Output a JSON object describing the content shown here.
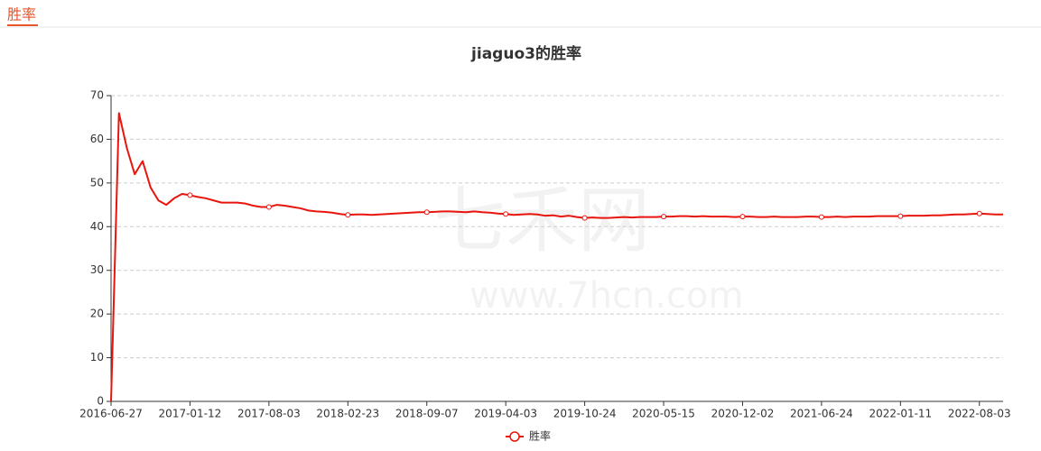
{
  "header": {
    "title": "胜率"
  },
  "watermark": {
    "brand": "七禾网",
    "url": "www.7hcn.com"
  },
  "chart_data": {
    "type": "line",
    "title": "jiaguo3的胜率",
    "categories": [
      "2016-06-27",
      null,
      null,
      null,
      null,
      null,
      null,
      null,
      null,
      null,
      "2017-01-12",
      null,
      null,
      null,
      null,
      null,
      null,
      null,
      null,
      null,
      "2017-08-03",
      null,
      null,
      null,
      null,
      null,
      null,
      null,
      null,
      null,
      "2018-02-23",
      null,
      null,
      null,
      null,
      null,
      null,
      null,
      null,
      null,
      "2018-09-07",
      null,
      null,
      null,
      null,
      null,
      null,
      null,
      null,
      null,
      "2019-04-03",
      null,
      null,
      null,
      null,
      null,
      null,
      null,
      null,
      null,
      "2019-10-24",
      null,
      null,
      null,
      null,
      null,
      null,
      null,
      null,
      null,
      "2020-05-15",
      null,
      null,
      null,
      null,
      null,
      null,
      null,
      null,
      null,
      "2020-12-02",
      null,
      null,
      null,
      null,
      null,
      null,
      null,
      null,
      null,
      "2021-06-24",
      null,
      null,
      null,
      null,
      null,
      null,
      null,
      null,
      null,
      "2022-01-11",
      null,
      null,
      null,
      null,
      null,
      null,
      null,
      null,
      null,
      "2022-08-03",
      null,
      null,
      null
    ],
    "series": [
      {
        "name": "胜率",
        "color": "#e8150e",
        "values": [
          0,
          66,
          58,
          52,
          55,
          49,
          46,
          45,
          46.5,
          47.5,
          47.2,
          46.8,
          46.5,
          46,
          45.5,
          45.5,
          45.5,
          45.3,
          44.8,
          44.5,
          44.5,
          45,
          44.8,
          44.5,
          44.2,
          43.7,
          43.5,
          43.4,
          43.2,
          42.9,
          42.7,
          42.8,
          42.8,
          42.7,
          42.8,
          42.9,
          43,
          43.1,
          43.2,
          43.3,
          43.3,
          43.4,
          43.5,
          43.5,
          43.4,
          43.3,
          43.5,
          43.3,
          43.2,
          43,
          42.9,
          42.7,
          42.8,
          42.9,
          42.8,
          42.5,
          42.6,
          42.3,
          42.5,
          42.2,
          42,
          42.1,
          42,
          42,
          42.1,
          42.2,
          42.1,
          42.2,
          42.2,
          42.2,
          42.3,
          42.3,
          42.4,
          42.4,
          42.3,
          42.4,
          42.3,
          42.3,
          42.3,
          42.2,
          42.3,
          42.3,
          42.2,
          42.2,
          42.3,
          42.2,
          42.2,
          42.2,
          42.3,
          42.3,
          42.2,
          42.2,
          42.3,
          42.2,
          42.3,
          42.3,
          42.3,
          42.4,
          42.4,
          42.4,
          42.4,
          42.5,
          42.5,
          42.5,
          42.6,
          42.6,
          42.7,
          42.8,
          42.8,
          42.9,
          43,
          42.9,
          42.8,
          42.8
        ]
      }
    ],
    "ylim": [
      0,
      70
    ],
    "yticks": [
      0,
      10,
      20,
      30,
      40,
      50,
      60,
      70
    ],
    "grid": true,
    "legend": "bottom"
  }
}
